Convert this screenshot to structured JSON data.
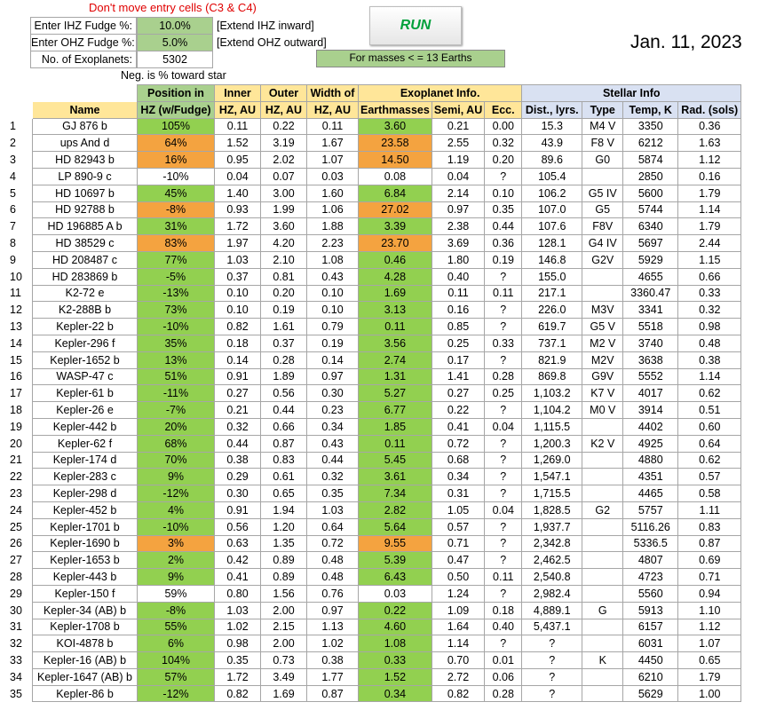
{
  "warning": "Don't move entry cells (C3 & C4)",
  "inputs": {
    "ihz_label": "Enter IHZ Fudge %:",
    "ihz_value": "10.0%",
    "ihz_note": "[Extend IHZ inward]",
    "ohz_label": "Enter OHZ Fudge %:",
    "ohz_value": "5.0%",
    "ohz_note": "[Extend OHZ outward]",
    "count_label": "No. of Exoplanets:",
    "count_value": "5302"
  },
  "run_label": "RUN",
  "date": "Jan. 11, 2023",
  "masses_note": "For masses < = 13 Earths",
  "neg_note": "Neg. is % toward star",
  "headers": {
    "position_top": "Position in",
    "inner_top": "Inner",
    "outer_top": "Outer",
    "width_top": "Width of",
    "exoplanet_group": "Exoplanet Info.",
    "stellar_group": "Stellar Info",
    "name": "Name",
    "position": "HZ (w/Fudge)",
    "inner": "HZ, AU",
    "outer": "HZ, AU",
    "width": "HZ, AU",
    "earthmasses": "Earthmasses",
    "semi": "Semi, AU",
    "ecc": "Ecc.",
    "dist": "Dist., lyrs.",
    "type": "Type",
    "temp": "Temp, K",
    "rad": "Rad. (sols)"
  },
  "rows": [
    {
      "n": "1",
      "name": "GJ 876 b",
      "pos": "105%",
      "pc": "g",
      "inner": "0.11",
      "outer": "0.22",
      "width": "0.11",
      "mass": "3.60",
      "mc": "g",
      "semi": "0.21",
      "ecc": "0.00",
      "dist": "15.3",
      "type": "M4 V",
      "temp": "3350",
      "rad": "0.36"
    },
    {
      "n": "2",
      "name": "ups And d",
      "pos": "64%",
      "pc": "o",
      "inner": "1.52",
      "outer": "3.19",
      "width": "1.67",
      "mass": "23.58",
      "mc": "o",
      "semi": "2.55",
      "ecc": "0.32",
      "dist": "43.9",
      "type": "F8 V",
      "temp": "6212",
      "rad": "1.63"
    },
    {
      "n": "3",
      "name": "HD 82943 b",
      "pos": "16%",
      "pc": "o",
      "inner": "0.95",
      "outer": "2.02",
      "width": "1.07",
      "mass": "14.50",
      "mc": "o",
      "semi": "1.19",
      "ecc": "0.20",
      "dist": "89.6",
      "type": "G0",
      "temp": "5874",
      "rad": "1.12"
    },
    {
      "n": "4",
      "name": "LP 890-9 c",
      "pos": "-10%",
      "pc": "",
      "inner": "0.04",
      "outer": "0.07",
      "width": "0.03",
      "mass": "0.08",
      "mc": "",
      "semi": "0.04",
      "ecc": "?",
      "dist": "105.4",
      "type": "",
      "temp": "2850",
      "rad": "0.16"
    },
    {
      "n": "5",
      "name": "HD 10697 b",
      "pos": "45%",
      "pc": "g",
      "inner": "1.40",
      "outer": "3.00",
      "width": "1.60",
      "mass": "6.84",
      "mc": "g",
      "semi": "2.14",
      "ecc": "0.10",
      "dist": "106.2",
      "type": "G5 IV",
      "temp": "5600",
      "rad": "1.79"
    },
    {
      "n": "6",
      "name": "HD 92788 b",
      "pos": "-8%",
      "pc": "o",
      "inner": "0.93",
      "outer": "1.99",
      "width": "1.06",
      "mass": "27.02",
      "mc": "o",
      "semi": "0.97",
      "ecc": "0.35",
      "dist": "107.0",
      "type": "G5",
      "temp": "5744",
      "rad": "1.14"
    },
    {
      "n": "7",
      "name": "HD 196885 A b",
      "pos": "31%",
      "pc": "g",
      "inner": "1.72",
      "outer": "3.60",
      "width": "1.88",
      "mass": "3.39",
      "mc": "g",
      "semi": "2.38",
      "ecc": "0.44",
      "dist": "107.6",
      "type": "F8V",
      "temp": "6340",
      "rad": "1.79"
    },
    {
      "n": "8",
      "name": "HD 38529 c",
      "pos": "83%",
      "pc": "o",
      "inner": "1.97",
      "outer": "4.20",
      "width": "2.23",
      "mass": "23.70",
      "mc": "o",
      "semi": "3.69",
      "ecc": "0.36",
      "dist": "128.1",
      "type": "G4 IV",
      "temp": "5697",
      "rad": "2.44"
    },
    {
      "n": "9",
      "name": "HD 208487 c",
      "pos": "77%",
      "pc": "g",
      "inner": "1.03",
      "outer": "2.10",
      "width": "1.08",
      "mass": "0.46",
      "mc": "g",
      "semi": "1.80",
      "ecc": "0.19",
      "dist": "146.8",
      "type": "G2V",
      "temp": "5929",
      "rad": "1.15"
    },
    {
      "n": "10",
      "name": "HD 283869 b",
      "pos": "-5%",
      "pc": "g",
      "inner": "0.37",
      "outer": "0.81",
      "width": "0.43",
      "mass": "4.28",
      "mc": "g",
      "semi": "0.40",
      "ecc": "?",
      "dist": "155.0",
      "type": "",
      "temp": "4655",
      "rad": "0.66"
    },
    {
      "n": "11",
      "name": "K2-72 e",
      "pos": "-13%",
      "pc": "g",
      "inner": "0.10",
      "outer": "0.20",
      "width": "0.10",
      "mass": "1.69",
      "mc": "g",
      "semi": "0.11",
      "ecc": "0.11",
      "dist": "217.1",
      "type": "",
      "temp": "3360.47",
      "rad": "0.33"
    },
    {
      "n": "12",
      "name": "K2-288B b",
      "pos": "73%",
      "pc": "g",
      "inner": "0.10",
      "outer": "0.19",
      "width": "0.10",
      "mass": "3.13",
      "mc": "g",
      "semi": "0.16",
      "ecc": "?",
      "dist": "226.0",
      "type": "M3V",
      "temp": "3341",
      "rad": "0.32"
    },
    {
      "n": "13",
      "name": "Kepler-22 b",
      "pos": "-10%",
      "pc": "g",
      "inner": "0.82",
      "outer": "1.61",
      "width": "0.79",
      "mass": "0.11",
      "mc": "g",
      "semi": "0.85",
      "ecc": "?",
      "dist": "619.7",
      "type": "G5 V",
      "temp": "5518",
      "rad": "0.98"
    },
    {
      "n": "14",
      "name": "Kepler-296 f",
      "pos": "35%",
      "pc": "g",
      "inner": "0.18",
      "outer": "0.37",
      "width": "0.19",
      "mass": "3.56",
      "mc": "g",
      "semi": "0.25",
      "ecc": "0.33",
      "dist": "737.1",
      "type": "M2 V",
      "temp": "3740",
      "rad": "0.48"
    },
    {
      "n": "15",
      "name": "Kepler-1652 b",
      "pos": "13%",
      "pc": "g",
      "inner": "0.14",
      "outer": "0.28",
      "width": "0.14",
      "mass": "2.74",
      "mc": "g",
      "semi": "0.17",
      "ecc": "?",
      "dist": "821.9",
      "type": "M2V",
      "temp": "3638",
      "rad": "0.38"
    },
    {
      "n": "16",
      "name": "WASP-47 c",
      "pos": "51%",
      "pc": "g",
      "inner": "0.91",
      "outer": "1.89",
      "width": "0.97",
      "mass": "1.31",
      "mc": "g",
      "semi": "1.41",
      "ecc": "0.28",
      "dist": "869.8",
      "type": "G9V",
      "temp": "5552",
      "rad": "1.14"
    },
    {
      "n": "17",
      "name": "Kepler-61 b",
      "pos": "-11%",
      "pc": "g",
      "inner": "0.27",
      "outer": "0.56",
      "width": "0.30",
      "mass": "5.27",
      "mc": "g",
      "semi": "0.27",
      "ecc": "0.25",
      "dist": "1,103.2",
      "type": "K7 V",
      "temp": "4017",
      "rad": "0.62"
    },
    {
      "n": "18",
      "name": "Kepler-26 e",
      "pos": "-7%",
      "pc": "g",
      "inner": "0.21",
      "outer": "0.44",
      "width": "0.23",
      "mass": "6.77",
      "mc": "g",
      "semi": "0.22",
      "ecc": "?",
      "dist": "1,104.2",
      "type": "M0 V",
      "temp": "3914",
      "rad": "0.51"
    },
    {
      "n": "19",
      "name": "Kepler-442 b",
      "pos": "20%",
      "pc": "g",
      "inner": "0.32",
      "outer": "0.66",
      "width": "0.34",
      "mass": "1.85",
      "mc": "g",
      "semi": "0.41",
      "ecc": "0.04",
      "dist": "1,115.5",
      "type": "",
      "temp": "4402",
      "rad": "0.60"
    },
    {
      "n": "20",
      "name": "Kepler-62 f",
      "pos": "68%",
      "pc": "g",
      "inner": "0.44",
      "outer": "0.87",
      "width": "0.43",
      "mass": "0.11",
      "mc": "g",
      "semi": "0.72",
      "ecc": "?",
      "dist": "1,200.3",
      "type": "K2 V",
      "temp": "4925",
      "rad": "0.64"
    },
    {
      "n": "21",
      "name": "Kepler-174 d",
      "pos": "70%",
      "pc": "g",
      "inner": "0.38",
      "outer": "0.83",
      "width": "0.44",
      "mass": "5.45",
      "mc": "g",
      "semi": "0.68",
      "ecc": "?",
      "dist": "1,269.0",
      "type": "",
      "temp": "4880",
      "rad": "0.62"
    },
    {
      "n": "22",
      "name": "Kepler-283 c",
      "pos": "9%",
      "pc": "g",
      "inner": "0.29",
      "outer": "0.61",
      "width": "0.32",
      "mass": "3.61",
      "mc": "g",
      "semi": "0.34",
      "ecc": "?",
      "dist": "1,547.1",
      "type": "",
      "temp": "4351",
      "rad": "0.57"
    },
    {
      "n": "23",
      "name": "Kepler-298 d",
      "pos": "-12%",
      "pc": "g",
      "inner": "0.30",
      "outer": "0.65",
      "width": "0.35",
      "mass": "7.34",
      "mc": "g",
      "semi": "0.31",
      "ecc": "?",
      "dist": "1,715.5",
      "type": "",
      "temp": "4465",
      "rad": "0.58"
    },
    {
      "n": "24",
      "name": "Kepler-452 b",
      "pos": "4%",
      "pc": "g",
      "inner": "0.91",
      "outer": "1.94",
      "width": "1.03",
      "mass": "2.82",
      "mc": "g",
      "semi": "1.05",
      "ecc": "0.04",
      "dist": "1,828.5",
      "type": "G2",
      "temp": "5757",
      "rad": "1.11"
    },
    {
      "n": "25",
      "name": "Kepler-1701 b",
      "pos": "-10%",
      "pc": "g",
      "inner": "0.56",
      "outer": "1.20",
      "width": "0.64",
      "mass": "5.64",
      "mc": "g",
      "semi": "0.57",
      "ecc": "?",
      "dist": "1,937.7",
      "type": "",
      "temp": "5116.26",
      "rad": "0.83"
    },
    {
      "n": "26",
      "name": "Kepler-1690 b",
      "pos": "3%",
      "pc": "o",
      "inner": "0.63",
      "outer": "1.35",
      "width": "0.72",
      "mass": "9.55",
      "mc": "o",
      "semi": "0.71",
      "ecc": "?",
      "dist": "2,342.8",
      "type": "",
      "temp": "5336.5",
      "rad": "0.87"
    },
    {
      "n": "27",
      "name": "Kepler-1653 b",
      "pos": "2%",
      "pc": "g",
      "inner": "0.42",
      "outer": "0.89",
      "width": "0.48",
      "mass": "5.39",
      "mc": "g",
      "semi": "0.47",
      "ecc": "?",
      "dist": "2,462.5",
      "type": "",
      "temp": "4807",
      "rad": "0.69"
    },
    {
      "n": "28",
      "name": "Kepler-443 b",
      "pos": "9%",
      "pc": "g",
      "inner": "0.41",
      "outer": "0.89",
      "width": "0.48",
      "mass": "6.43",
      "mc": "g",
      "semi": "0.50",
      "ecc": "0.11",
      "dist": "2,540.8",
      "type": "",
      "temp": "4723",
      "rad": "0.71"
    },
    {
      "n": "29",
      "name": "Kepler-150 f",
      "pos": "59%",
      "pc": "",
      "inner": "0.80",
      "outer": "1.56",
      "width": "0.76",
      "mass": "0.03",
      "mc": "",
      "semi": "1.24",
      "ecc": "?",
      "dist": "2,982.4",
      "type": "",
      "temp": "5560",
      "rad": "0.94"
    },
    {
      "n": "30",
      "name": "Kepler-34 (AB) b",
      "pos": "-8%",
      "pc": "g",
      "inner": "1.03",
      "outer": "2.00",
      "width": "0.97",
      "mass": "0.22",
      "mc": "g",
      "semi": "1.09",
      "ecc": "0.18",
      "dist": "4,889.1",
      "type": "G",
      "temp": "5913",
      "rad": "1.10"
    },
    {
      "n": "31",
      "name": "Kepler-1708 b",
      "pos": "55%",
      "pc": "g",
      "inner": "1.02",
      "outer": "2.15",
      "width": "1.13",
      "mass": "4.60",
      "mc": "g",
      "semi": "1.64",
      "ecc": "0.40",
      "dist": "5,437.1",
      "type": "",
      "temp": "6157",
      "rad": "1.12"
    },
    {
      "n": "32",
      "name": "KOI-4878 b",
      "pos": "6%",
      "pc": "g",
      "inner": "0.98",
      "outer": "2.00",
      "width": "1.02",
      "mass": "1.08",
      "mc": "g",
      "semi": "1.14",
      "ecc": "?",
      "dist": "?",
      "type": "",
      "temp": "6031",
      "rad": "1.07"
    },
    {
      "n": "33",
      "name": "Kepler-16 (AB) b",
      "pos": "104%",
      "pc": "g",
      "inner": "0.35",
      "outer": "0.73",
      "width": "0.38",
      "mass": "0.33",
      "mc": "g",
      "semi": "0.70",
      "ecc": "0.01",
      "dist": "?",
      "type": "K",
      "temp": "4450",
      "rad": "0.65"
    },
    {
      "n": "34",
      "name": "Kepler-1647 (AB) b",
      "pos": "57%",
      "pc": "g",
      "inner": "1.72",
      "outer": "3.49",
      "width": "1.77",
      "mass": "1.52",
      "mc": "g",
      "semi": "2.72",
      "ecc": "0.06",
      "dist": "?",
      "type": "",
      "temp": "6210",
      "rad": "1.79"
    },
    {
      "n": "35",
      "name": "Kepler-86 b",
      "pos": "-12%",
      "pc": "g",
      "inner": "0.82",
      "outer": "1.69",
      "width": "0.87",
      "mass": "0.34",
      "mc": "g",
      "semi": "0.82",
      "ecc": "0.28",
      "dist": "?",
      "type": "",
      "temp": "5629",
      "rad": "1.00"
    }
  ]
}
